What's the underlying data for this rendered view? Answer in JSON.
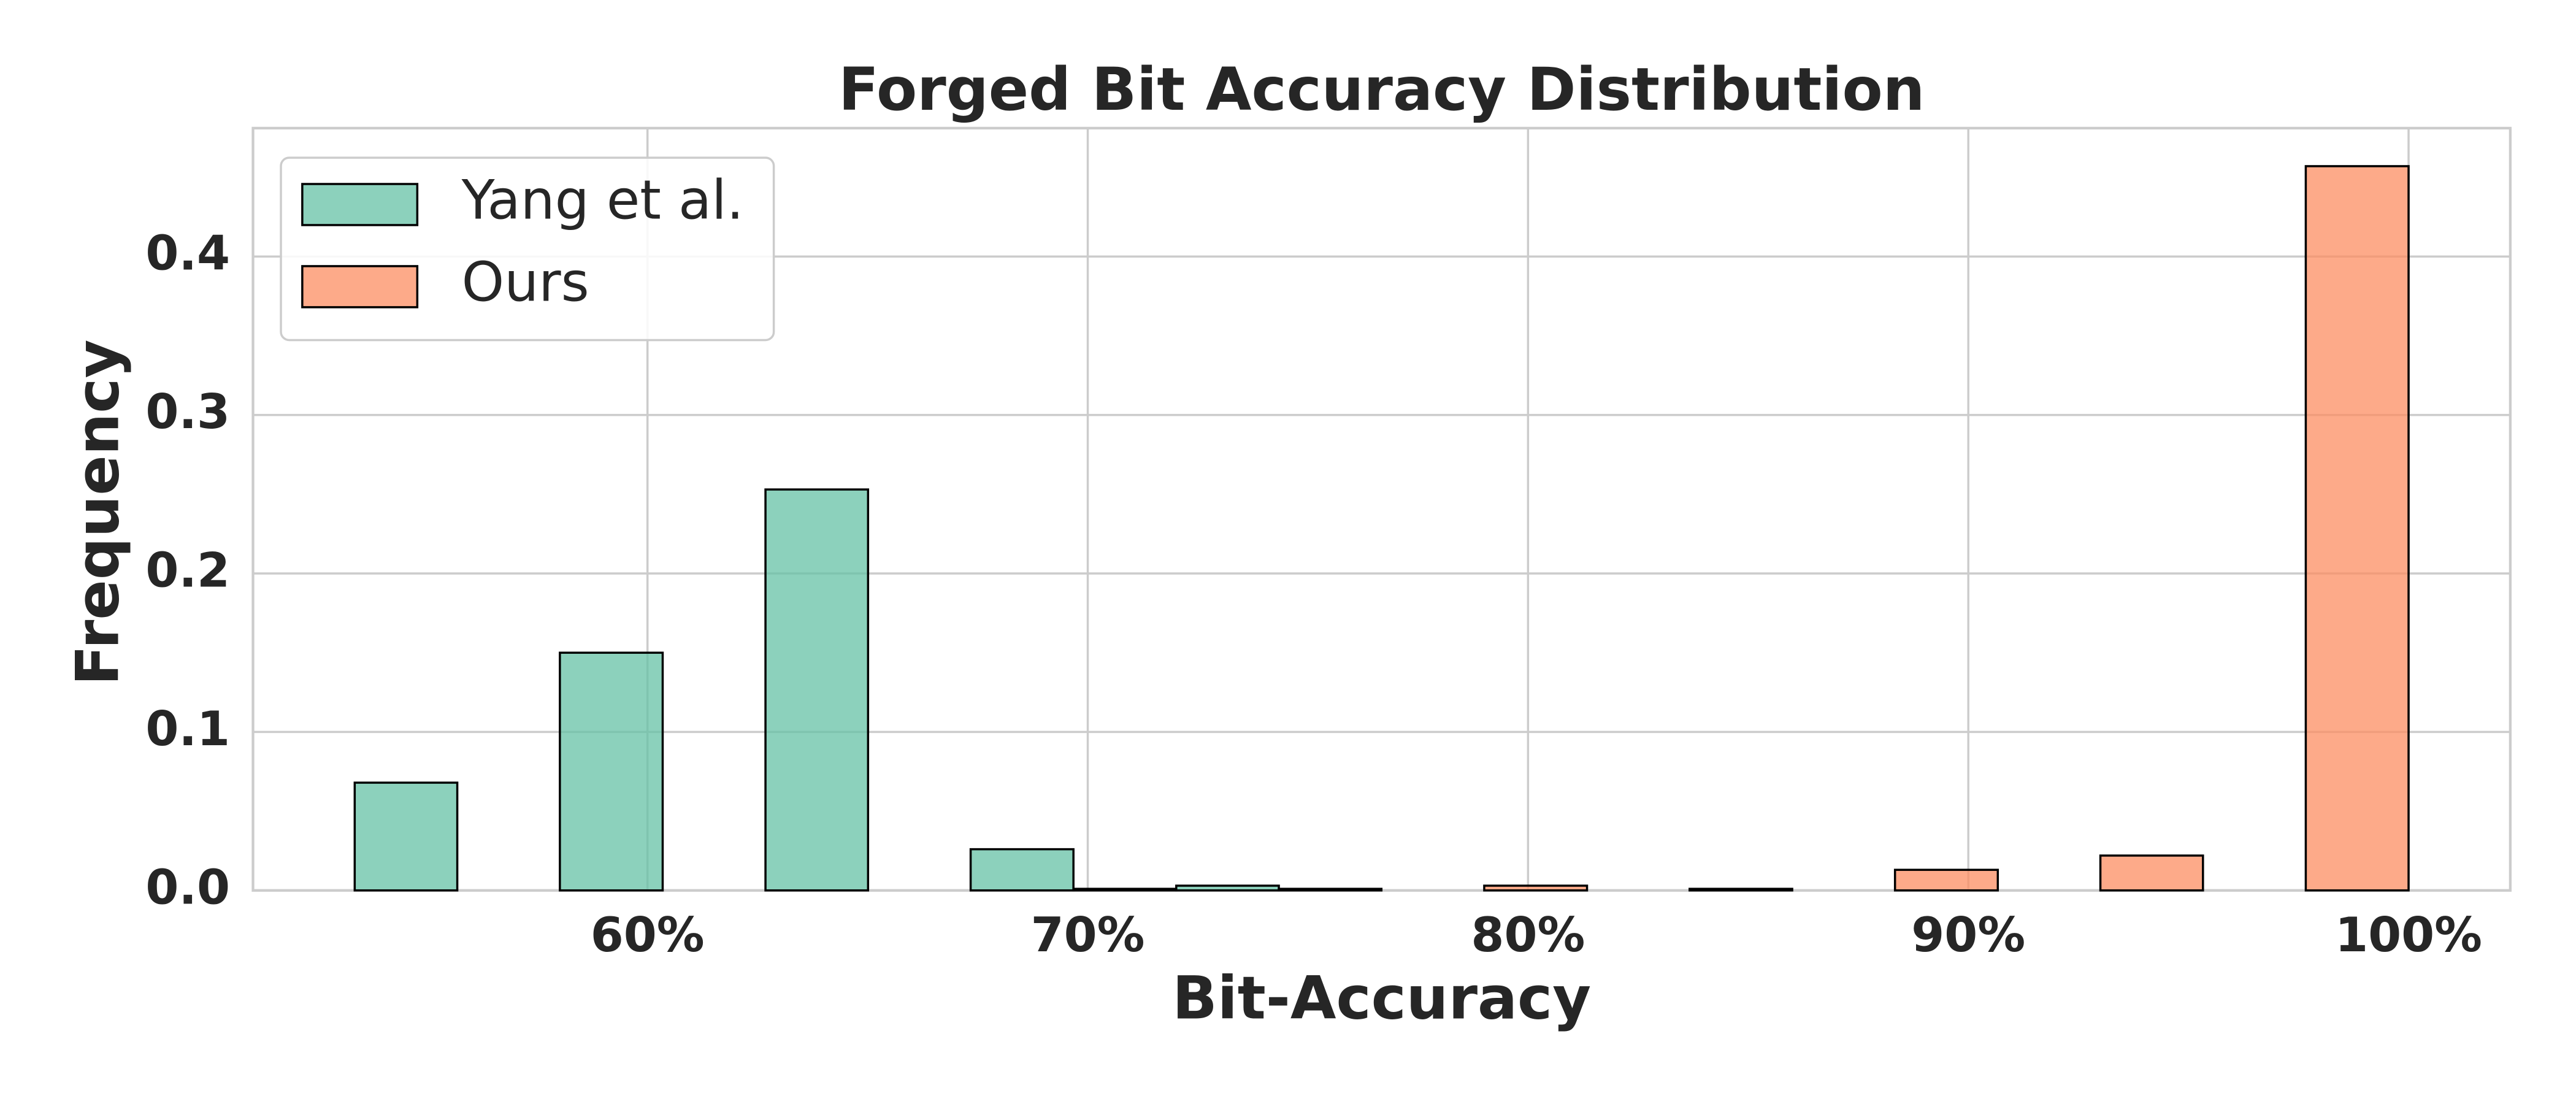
{
  "chart_data": {
    "type": "histogram",
    "title": "Forged Bit Accuracy Distribution",
    "x_label": "Bit-Accuracy",
    "y_label": "Frequency",
    "bins": [
      53.35,
      58.01,
      62.68,
      67.34,
      72.01,
      76.67,
      81.34,
      86.0,
      90.67,
      95.33,
      100.0
    ],
    "series": [
      {
        "name": "Yang et al.",
        "color": "#66c2a5",
        "values": [
          0.068,
          0.15,
          0.253,
          0.026,
          0.003,
          0,
          0,
          0,
          0,
          0
        ]
      },
      {
        "name": "Ours",
        "color": "#fc8d62",
        "values": [
          0,
          0,
          0,
          0.001,
          0.001,
          0.003,
          0.001,
          0.013,
          0.022,
          0.457
        ]
      }
    ],
    "xlim": [
      51.04,
      102.31
    ],
    "ylim": [
      0,
      0.481
    ],
    "xticks": [
      {
        "value": 60,
        "label": "60%"
      },
      {
        "value": 70,
        "label": "70%"
      },
      {
        "value": 80,
        "label": "80%"
      },
      {
        "value": 90,
        "label": "90%"
      },
      {
        "value": 100,
        "label": "100%"
      }
    ],
    "yticks": [
      {
        "value": 0,
        "label": "0.0"
      },
      0.1,
      0.2,
      0.3,
      0.4
    ],
    "grid": true,
    "legend": "upper left"
  }
}
